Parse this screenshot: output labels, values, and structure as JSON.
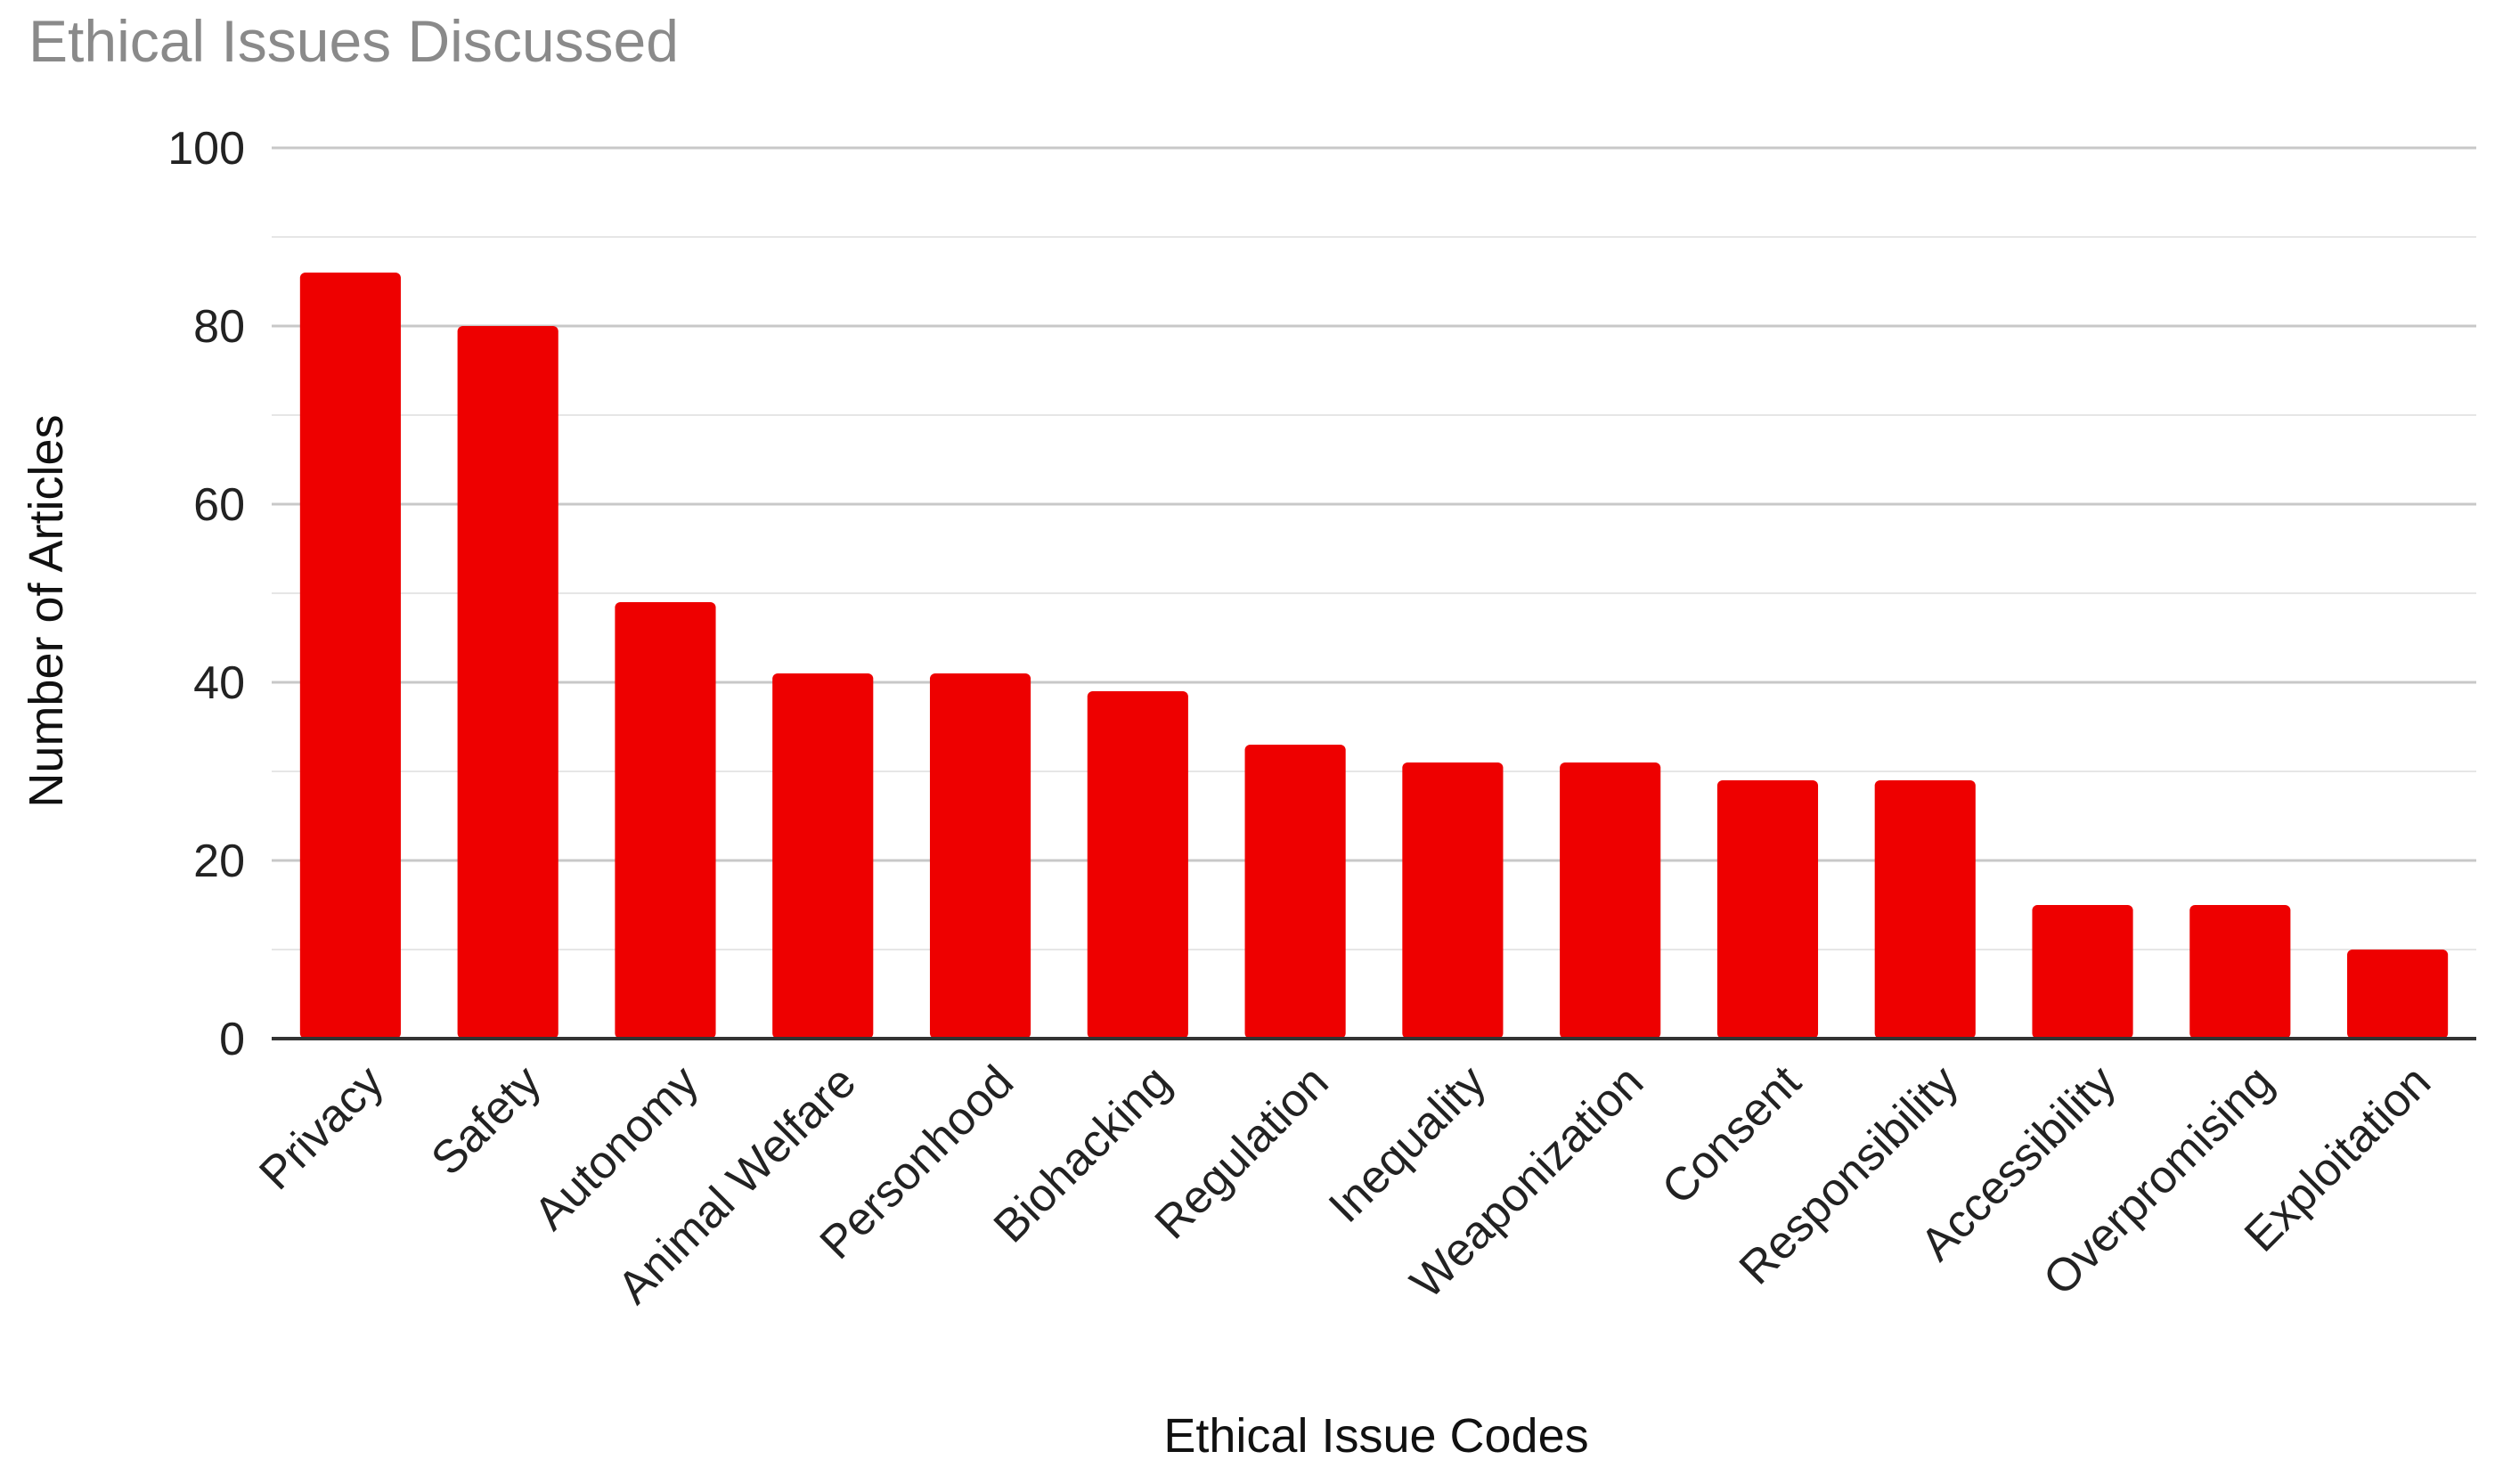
{
  "chart_data": {
    "type": "bar",
    "title": "Ethical Issues Discussed",
    "xlabel": "Ethical Issue Codes",
    "ylabel": "Number of Articles",
    "categories": [
      "Privacy",
      "Safety",
      "Autonomy",
      "Animal Welfare",
      "Personhood",
      "Biohacking",
      "Regulation",
      "Inequality",
      "Weaponization",
      "Consent",
      "Responsibility",
      "Accessibility",
      "Overpromising",
      "Exploitation"
    ],
    "values": [
      86,
      80,
      49,
      41,
      41,
      39,
      33,
      31,
      31,
      29,
      29,
      15,
      15,
      10
    ],
    "ylim": [
      0,
      100
    ],
    "yticks": [
      0,
      20,
      40,
      60,
      80,
      100
    ],
    "grid": true,
    "legend": "none",
    "bar_color": "#ee0000"
  }
}
